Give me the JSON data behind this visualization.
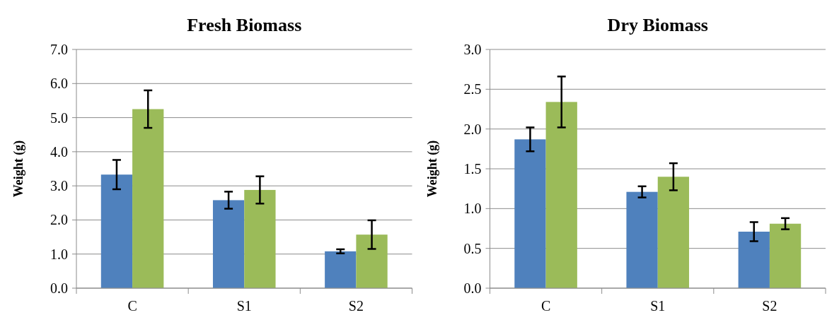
{
  "chart_data": [
    {
      "type": "bar",
      "title": "Fresh Biomass",
      "ylabel": "Weight (g)",
      "categories": [
        "C",
        "S1",
        "S2"
      ],
      "series": [
        {
          "color": "#4f81bd",
          "values": [
            3.33,
            2.58,
            1.08
          ],
          "errors": [
            0.43,
            0.25,
            0.06
          ]
        },
        {
          "color": "#9bbb59",
          "values": [
            5.25,
            2.88,
            1.57
          ],
          "errors": [
            0.55,
            0.4,
            0.42
          ]
        }
      ],
      "ylim": [
        0,
        7
      ],
      "yticks": [
        {
          "value": 0,
          "label": "0.0"
        },
        {
          "value": 1,
          "label": "1.0"
        },
        {
          "value": 2,
          "label": "2.0"
        },
        {
          "value": 3,
          "label": "3.0"
        },
        {
          "value": 4,
          "label": "4.0"
        },
        {
          "value": 5,
          "label": "5.0"
        },
        {
          "value": 6,
          "label": "6.0"
        },
        {
          "value": 7,
          "label": "7.0"
        }
      ],
      "grid": "y"
    },
    {
      "type": "bar",
      "title": "Dry Biomass",
      "ylabel": "Weight (g)",
      "categories": [
        "C",
        "S1",
        "S2"
      ],
      "series": [
        {
          "color": "#4f81bd",
          "values": [
            1.87,
            1.21,
            0.71
          ],
          "errors": [
            0.15,
            0.07,
            0.12
          ]
        },
        {
          "color": "#9bbb59",
          "values": [
            2.34,
            1.4,
            0.81
          ],
          "errors": [
            0.32,
            0.17,
            0.07
          ]
        }
      ],
      "ylim": [
        0,
        3
      ],
      "yticks": [
        {
          "value": 0,
          "label": "0.0"
        },
        {
          "value": 0.5,
          "label": "0.5"
        },
        {
          "value": 1,
          "label": "1.0"
        },
        {
          "value": 1.5,
          "label": "1.5"
        },
        {
          "value": 2,
          "label": "2.0"
        },
        {
          "value": 2.5,
          "label": "2.5"
        },
        {
          "value": 3,
          "label": "3.0"
        }
      ],
      "grid": "y"
    }
  ]
}
